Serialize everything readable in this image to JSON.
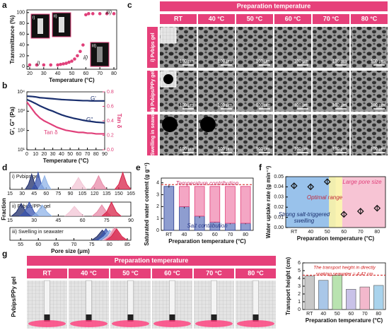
{
  "panel_labels": [
    "a",
    "b",
    "c",
    "d",
    "e",
    "f",
    "g"
  ],
  "sem_panel": {
    "header": "Preparation temperature",
    "columns": [
      "RT",
      "40 °C",
      "50 °C",
      "60 °C",
      "70 °C",
      "80 °C"
    ],
    "rows": [
      "i) Pvbips gel",
      "ii) Pvbips/PPy gel",
      "iii) Swelling in seawater"
    ],
    "scale_bar": "100 μm"
  },
  "photo_panel": {
    "header": "Preparation temperature",
    "columns": [
      "RT",
      "40 °C",
      "50 °C",
      "60 °C",
      "70 °C",
      "80 °C"
    ],
    "row_label": "Pvbips/PPy gel"
  },
  "chart_data": [
    {
      "type": "scatter",
      "xlabel": "Temperature (°C)",
      "ylabel": "Transmittance (%)",
      "color": "#e0407a",
      "x": [
        20,
        25,
        30,
        35,
        40,
        42,
        44,
        46,
        48,
        50,
        52,
        54,
        56,
        58,
        60,
        62,
        65,
        70,
        75,
        80
      ],
      "values": [
        3,
        3,
        3,
        3,
        3,
        4,
        5,
        6,
        8,
        10,
        14,
        20,
        28,
        40,
        96,
        98,
        98,
        98,
        98,
        98
      ],
      "xlim": [
        18,
        82
      ],
      "xticks": [
        20,
        30,
        40,
        50,
        60,
        70,
        80
      ],
      "ylim": [
        -5,
        105
      ],
      "yticks": [
        0,
        20,
        40,
        60,
        80,
        100
      ],
      "annotations": [
        "i)",
        "ii)",
        "iii)"
      ]
    },
    {
      "type": "line",
      "xlabel": "Temperature (°C)",
      "ylabel": "G', G'' (Pa)",
      "y2label": "Tan δ",
      "log_y": true,
      "x": [
        0,
        5,
        10,
        15,
        20,
        25,
        30,
        35,
        40,
        45,
        50,
        55,
        60,
        65,
        70,
        75,
        80,
        85,
        90
      ],
      "series": [
        {
          "name": "G'",
          "color": "#1a2f6e",
          "values": [
            6000,
            5800,
            5500,
            5000,
            4800,
            4600,
            4400,
            4200,
            4000,
            3900,
            3800,
            3700,
            3600,
            3500,
            3500,
            3400,
            3400,
            3400,
            3400
          ]
        },
        {
          "name": "G''",
          "color": "#1a2f6e",
          "values": [
            4000,
            3200,
            2500,
            1900,
            1500,
            1200,
            1000,
            800,
            650,
            550,
            480,
            420,
            380,
            340,
            310,
            290,
            270,
            260,
            250
          ]
        },
        {
          "name": "Tan δ",
          "color": "#e0407a",
          "axis": "y2",
          "values": [
            0.66,
            0.58,
            0.5,
            0.44,
            0.4,
            0.37,
            0.34,
            0.31,
            0.29,
            0.27,
            0.26,
            0.25,
            0.24,
            0.24,
            0.23,
            0.23,
            0.22,
            0.22,
            0.22
          ]
        }
      ],
      "xlim": [
        0,
        90
      ],
      "xticks": [
        0,
        10,
        20,
        30,
        40,
        50,
        60,
        70,
        80,
        90
      ],
      "ylim": [
        10,
        10000
      ],
      "yticks": [
        {
          "value": 10,
          "label": "10¹"
        },
        {
          "value": 100,
          "label": "10²"
        },
        {
          "value": 1000,
          "label": "10³"
        },
        {
          "value": 10000,
          "label": "10⁴"
        }
      ],
      "y2lim": [
        0,
        0.8
      ],
      "y2ticks": [
        {
          "value": 0,
          "label": "0.0"
        },
        0.2,
        0.4,
        0.6,
        0.8
      ]
    },
    {
      "type": "area",
      "title": "i) Pvbips gel",
      "xlim": [
        15,
        165
      ],
      "xticks": [
        15,
        30,
        45,
        60,
        75,
        90,
        105,
        120,
        135,
        150,
        165
      ],
      "ylim": [
        0,
        1
      ],
      "series": [
        {
          "color": "#1f2d6b",
          "x": [
            34,
            38,
            42,
            46,
            50
          ],
          "values": [
            0,
            0.3,
            0.9,
            0.3,
            0
          ]
        },
        {
          "color": "#3a56b0",
          "x": [
            42,
            46,
            50,
            54,
            58
          ],
          "values": [
            0,
            0.3,
            1,
            0.3,
            0
          ]
        },
        {
          "color": "#8fb3e8",
          "x": [
            50,
            54,
            58,
            62,
            66
          ],
          "values": [
            0,
            0.3,
            0.8,
            0.3,
            0
          ]
        },
        {
          "color": "#f3c6d6",
          "x": [
            90,
            95,
            100,
            105,
            110
          ],
          "values": [
            0,
            0.3,
            0.7,
            0.3,
            0
          ]
        },
        {
          "color": "#e88aa8",
          "x": [
            115,
            120,
            125,
            130,
            135
          ],
          "values": [
            0,
            0.3,
            0.8,
            0.3,
            0
          ]
        },
        {
          "color": "#d8244a",
          "x": [
            145,
            150,
            155,
            160,
            165
          ],
          "values": [
            0,
            0.3,
            1,
            0.3,
            0
          ]
        }
      ]
    },
    {
      "type": "area",
      "title": "ii) Pvbips/PPy gel",
      "ylabel": "Fraction",
      "xlim": [
        15,
        90
      ],
      "xticks": [
        15,
        30,
        45,
        60,
        75,
        90
      ],
      "ylim": [
        0,
        1
      ],
      "series": [
        {
          "color": "#1f2d6b",
          "x": [
            16,
            19,
            22,
            25,
            28
          ],
          "values": [
            0,
            0.3,
            0.9,
            0.3,
            0
          ]
        },
        {
          "color": "#3a56b0",
          "x": [
            21,
            24,
            27,
            30,
            33
          ],
          "values": [
            0,
            0.3,
            1,
            0.3,
            0
          ]
        },
        {
          "color": "#8fb3e8",
          "x": [
            29,
            32,
            35,
            38,
            41
          ],
          "values": [
            0,
            0.3,
            0.8,
            0.3,
            0
          ]
        },
        {
          "color": "#f3c6d6",
          "x": [
            49,
            52,
            55,
            58,
            61
          ],
          "values": [
            0,
            0.3,
            0.7,
            0.3,
            0
          ]
        },
        {
          "color": "#e88aa8",
          "x": [
            66,
            69,
            72,
            75,
            78
          ],
          "values": [
            0,
            0.3,
            0.8,
            0.3,
            0
          ]
        },
        {
          "color": "#d8244a",
          "x": [
            72,
            75,
            78,
            81,
            84
          ],
          "values": [
            0,
            0.3,
            1,
            0.3,
            0
          ]
        }
      ]
    },
    {
      "type": "area",
      "title": "iii) Swelling in seawater",
      "xlabel": "Pore size (μm)",
      "xlim": [
        52,
        86
      ],
      "xticks": [
        55,
        60,
        65,
        70,
        75,
        80,
        85
      ],
      "ylim": [
        0,
        1
      ],
      "series": [
        {
          "color": "#1f2d6b",
          "x": [
            75,
            76.5,
            78,
            79.5,
            81
          ],
          "values": [
            0,
            0.3,
            0.8,
            0.3,
            0
          ]
        },
        {
          "color": "#3a56b0",
          "x": [
            76,
            77.5,
            79,
            80.5,
            82
          ],
          "values": [
            0,
            0.3,
            0.9,
            0.3,
            0
          ]
        },
        {
          "color": "#8fb3e8",
          "x": [
            77,
            78.5,
            80,
            81.5,
            83
          ],
          "values": [
            0,
            0.3,
            0.8,
            0.3,
            0
          ]
        },
        {
          "color": "#f3c6d6",
          "x": [
            78,
            79.5,
            81,
            82.5,
            84
          ],
          "values": [
            0,
            0.3,
            0.9,
            0.3,
            0
          ]
        },
        {
          "color": "#e88aa8",
          "x": [
            78.5,
            80,
            81.5,
            83,
            84.5
          ],
          "values": [
            0,
            0.3,
            1,
            0.3,
            0
          ]
        },
        {
          "color": "#d8244a",
          "x": [
            79,
            80.5,
            82,
            83.5,
            85
          ],
          "values": [
            0,
            0.3,
            0.9,
            0.3,
            0
          ]
        }
      ]
    },
    {
      "type": "stacked_bar",
      "xlabel": "Preparation temperature (°C)",
      "ylabel": "Saturated water content (g g⁻¹)",
      "categories": [
        "RT",
        "40",
        "50",
        "60",
        "70",
        "80"
      ],
      "series": [
        {
          "name": "Salt contribution",
          "color": "#8e9dd0",
          "values": [
            3.7,
            2.0,
            1.2,
            0.7,
            0.6,
            0.6
          ],
          "errors": [
            0.1,
            0.15,
            0.15,
            0.05,
            0.08,
            0.08
          ]
        },
        {
          "name": "Temperature contribution",
          "color": "#f4a6c4",
          "values": [
            0,
            1.7,
            2.5,
            3.0,
            3.1,
            3.1
          ]
        }
      ],
      "ref_line": 3.85,
      "ylim": [
        0,
        4.4
      ],
      "yticks": [
        0,
        1,
        2,
        3,
        4
      ]
    },
    {
      "type": "scatter",
      "xlabel": "Preparation temperature (°C)",
      "ylabel": "Water uptake rate (g min⁻¹)",
      "color": "#111",
      "categories": [
        "RT",
        "40",
        "50",
        "60",
        "70",
        "80"
      ],
      "values": [
        0.041,
        0.04,
        0.045,
        0.013,
        0.016,
        0.019
      ],
      "errors": [
        0.002,
        0.002,
        0.002,
        0.003,
        0.003,
        0.002
      ],
      "ylim": [
        0,
        0.05
      ],
      "yticks": [
        {
          "value": 0,
          "label": "0.00"
        },
        {
          "value": 0.01,
          "label": "0.01"
        },
        {
          "value": 0.02,
          "label": "0.02"
        },
        {
          "value": 0.03,
          "label": "0.03"
        },
        {
          "value": 0.04,
          "label": "0.04"
        },
        {
          "value": 0.05,
          "label": "0.05"
        }
      ],
      "annotations": [
        "Large pore size",
        "Optimal range",
        "Strong salt-triggered",
        "swelling"
      ]
    },
    {
      "type": "bar",
      "xlabel": "Preparation temperature (°C)",
      "ylabel": "Transport height (cm)",
      "categories": [
        "RT",
        "40",
        "50",
        "60",
        "70",
        "80"
      ],
      "values": [
        4.3,
        3.75,
        4.4,
        2.6,
        2.9,
        3.1
      ],
      "colors": [
        "#c8c8c8",
        "#a9c7e8",
        "#b9e3b0",
        "#c9c2e8",
        "#f3b8cc",
        "#a9d3ec"
      ],
      "ref_line": 4.42,
      "ylim": [
        0,
        6
      ],
      "yticks": [
        0,
        1,
        2,
        3,
        4,
        5,
        6
      ],
      "annotations": [
        "The transport height in directly",
        "soaking seawater = 4.42  cm"
      ]
    }
  ]
}
